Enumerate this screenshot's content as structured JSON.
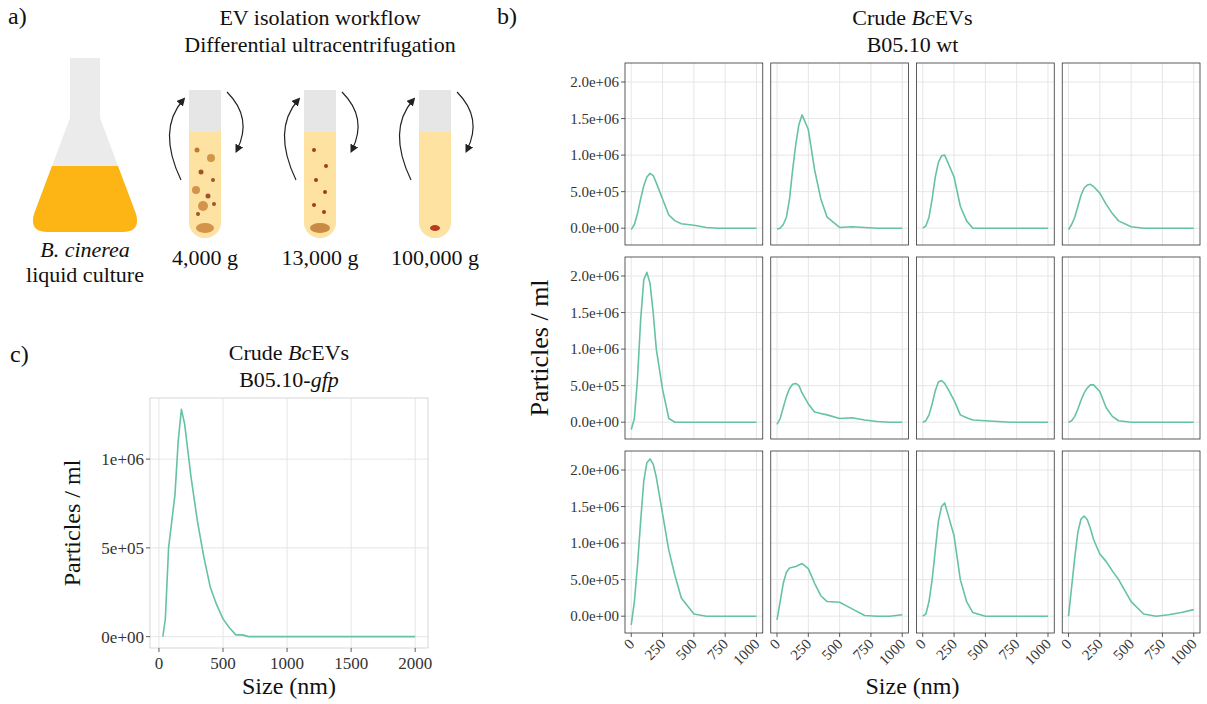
{
  "figure": {
    "panel_a": {
      "letter": "a)",
      "title_lines": [
        "EV isolation workflow",
        "Differential ultracentrifugation"
      ],
      "culture_label": [
        [
          {
            "text": "B. cinerea",
            "italic": true
          }
        ],
        [
          {
            "text": "liquid culture"
          }
        ]
      ],
      "steps": [
        "4,000 g",
        "13,000 g",
        "100,000 g"
      ]
    },
    "panel_b": {
      "letter": "b)",
      "title_lines": [
        [
          {
            "text": "Crude "
          },
          {
            "text": "Bc",
            "italic": true
          },
          {
            "text": "EVs"
          }
        ],
        [
          {
            "text": "B05.10 wt"
          }
        ]
      ],
      "x_label": "Size (nm)",
      "y_label": "Particles / ml"
    },
    "panel_c": {
      "letter": "c)",
      "title_lines": [
        [
          {
            "text": "Crude "
          },
          {
            "text": "Bc",
            "italic": true
          },
          {
            "text": "EVs"
          }
        ],
        [
          {
            "text": "B05.10-"
          },
          {
            "text": "gfp",
            "italic": true
          }
        ]
      ]
    }
  },
  "chart_data": [
    {
      "type": "line",
      "color": "#66c2a5",
      "grid": true,
      "tick_labels": "y",
      "x": [
        0,
        25,
        50,
        75,
        100,
        125,
        150,
        175,
        200,
        250,
        300,
        350,
        400,
        500,
        600,
        700,
        800,
        900,
        1000
      ],
      "values": [
        -20000,
        50000,
        200000,
        400000,
        580000,
        700000,
        750000,
        720000,
        620000,
        400000,
        180000,
        100000,
        60000,
        40000,
        10000,
        0,
        0,
        0,
        0
      ],
      "xlim": [
        -50,
        1050
      ],
      "ylim": [
        -230000,
        2260000
      ],
      "xticks": [
        0,
        250,
        500,
        750,
        1000
      ],
      "yticks": [
        {
          "value": 0,
          "label": "0.0e+00"
        },
        {
          "value": 500000,
          "label": "5.0e+05"
        },
        {
          "value": 1000000,
          "label": "1.0e+06"
        },
        {
          "value": 1500000,
          "label": "1.5e+06"
        },
        {
          "value": 2000000,
          "label": "2.0e+06"
        }
      ]
    },
    {
      "type": "line",
      "color": "#66c2a5",
      "grid": true,
      "tick_labels": false,
      "x": [
        0,
        25,
        50,
        75,
        100,
        125,
        150,
        175,
        200,
        250,
        300,
        350,
        400,
        500,
        600,
        700,
        800,
        900,
        1000
      ],
      "values": [
        -10000,
        0,
        50000,
        150000,
        400000,
        800000,
        1150000,
        1420000,
        1550000,
        1350000,
        800000,
        400000,
        150000,
        10000,
        20000,
        10000,
        0,
        0,
        0
      ],
      "xlim": [
        -50,
        1050
      ],
      "ylim": [
        -230000,
        2260000
      ],
      "xticks": [
        0,
        250,
        500,
        750,
        1000
      ],
      "yticks": [
        {
          "value": 0,
          "label": "0.0e+00"
        },
        {
          "value": 500000,
          "label": "5.0e+05"
        },
        {
          "value": 1000000,
          "label": "1.0e+06"
        },
        {
          "value": 1500000,
          "label": "1.5e+06"
        },
        {
          "value": 2000000,
          "label": "2.0e+06"
        }
      ]
    },
    {
      "type": "line",
      "color": "#66c2a5",
      "grid": true,
      "tick_labels": false,
      "x": [
        0,
        25,
        50,
        75,
        100,
        125,
        150,
        175,
        200,
        250,
        300,
        350,
        400,
        500,
        600,
        700,
        800,
        900,
        1000
      ],
      "values": [
        0,
        30000,
        150000,
        400000,
        700000,
        900000,
        990000,
        1000000,
        900000,
        700000,
        300000,
        100000,
        0,
        0,
        0,
        0,
        0,
        0,
        0
      ],
      "xlim": [
        -50,
        1050
      ],
      "ylim": [
        -230000,
        2260000
      ],
      "xticks": [
        0,
        250,
        500,
        750,
        1000
      ],
      "yticks": [
        {
          "value": 0,
          "label": "0.0e+00"
        },
        {
          "value": 500000,
          "label": "5.0e+05"
        },
        {
          "value": 1000000,
          "label": "1.0e+06"
        },
        {
          "value": 1500000,
          "label": "1.5e+06"
        },
        {
          "value": 2000000,
          "label": "2.0e+06"
        }
      ]
    },
    {
      "type": "line",
      "color": "#66c2a5",
      "grid": true,
      "tick_labels": false,
      "x": [
        0,
        25,
        50,
        75,
        100,
        125,
        150,
        175,
        200,
        250,
        300,
        350,
        400,
        500,
        600,
        700,
        800,
        900,
        1000
      ],
      "values": [
        -20000,
        50000,
        150000,
        300000,
        450000,
        550000,
        590000,
        600000,
        570000,
        480000,
        330000,
        200000,
        100000,
        20000,
        0,
        0,
        0,
        0,
        0
      ],
      "xlim": [
        -50,
        1050
      ],
      "ylim": [
        -230000,
        2260000
      ],
      "xticks": [
        0,
        250,
        500,
        750,
        1000
      ],
      "yticks": [
        {
          "value": 0,
          "label": "0.0e+00"
        },
        {
          "value": 500000,
          "label": "5.0e+05"
        },
        {
          "value": 1000000,
          "label": "1.0e+06"
        },
        {
          "value": 1500000,
          "label": "1.5e+06"
        },
        {
          "value": 2000000,
          "label": "2.0e+06"
        }
      ]
    },
    {
      "type": "line",
      "color": "#66c2a5",
      "grid": true,
      "tick_labels": "y",
      "x": [
        0,
        25,
        50,
        75,
        100,
        125,
        150,
        175,
        200,
        250,
        300,
        350,
        400,
        500,
        600,
        700,
        800,
        900,
        1000
      ],
      "values": [
        -100000,
        50000,
        600000,
        1400000,
        1950000,
        2050000,
        1900000,
        1500000,
        1000000,
        450000,
        50000,
        0,
        0,
        0,
        0,
        0,
        0,
        0,
        0
      ],
      "xlim": [
        -50,
        1050
      ],
      "ylim": [
        -230000,
        2260000
      ],
      "xticks": [
        0,
        250,
        500,
        750,
        1000
      ],
      "yticks": [
        {
          "value": 0,
          "label": "0.0e+00"
        },
        {
          "value": 500000,
          "label": "5.0e+05"
        },
        {
          "value": 1000000,
          "label": "1.0e+06"
        },
        {
          "value": 1500000,
          "label": "1.5e+06"
        },
        {
          "value": 2000000,
          "label": "2.0e+06"
        }
      ]
    },
    {
      "type": "line",
      "color": "#66c2a5",
      "grid": true,
      "tick_labels": false,
      "x": [
        0,
        25,
        50,
        75,
        100,
        125,
        150,
        175,
        200,
        250,
        300,
        350,
        400,
        500,
        600,
        700,
        800,
        900,
        1000
      ],
      "values": [
        -30000,
        50000,
        200000,
        350000,
        460000,
        520000,
        530000,
        500000,
        400000,
        250000,
        140000,
        120000,
        100000,
        50000,
        60000,
        30000,
        10000,
        0,
        0
      ],
      "xlim": [
        -50,
        1050
      ],
      "ylim": [
        -230000,
        2260000
      ],
      "xticks": [
        0,
        250,
        500,
        750,
        1000
      ],
      "yticks": [
        {
          "value": 0,
          "label": "0.0e+00"
        },
        {
          "value": 500000,
          "label": "5.0e+05"
        },
        {
          "value": 1000000,
          "label": "1.0e+06"
        },
        {
          "value": 1500000,
          "label": "1.5e+06"
        },
        {
          "value": 2000000,
          "label": "2.0e+06"
        }
      ]
    },
    {
      "type": "line",
      "color": "#66c2a5",
      "grid": true,
      "tick_labels": false,
      "x": [
        0,
        25,
        50,
        75,
        100,
        125,
        150,
        175,
        200,
        250,
        300,
        350,
        400,
        500,
        600,
        700,
        800,
        900,
        1000
      ],
      "values": [
        0,
        20000,
        100000,
        250000,
        430000,
        550000,
        570000,
        530000,
        460000,
        300000,
        100000,
        60000,
        30000,
        20000,
        10000,
        0,
        0,
        0,
        0
      ],
      "xlim": [
        -50,
        1050
      ],
      "ylim": [
        -230000,
        2260000
      ],
      "xticks": [
        0,
        250,
        500,
        750,
        1000
      ],
      "yticks": [
        {
          "value": 0,
          "label": "0.0e+00"
        },
        {
          "value": 500000,
          "label": "5.0e+05"
        },
        {
          "value": 1000000,
          "label": "1.0e+06"
        },
        {
          "value": 1500000,
          "label": "1.5e+06"
        },
        {
          "value": 2000000,
          "label": "2.0e+06"
        }
      ]
    },
    {
      "type": "line",
      "color": "#66c2a5",
      "grid": true,
      "tick_labels": false,
      "x": [
        0,
        25,
        50,
        75,
        100,
        125,
        150,
        175,
        200,
        250,
        300,
        350,
        400,
        500,
        600,
        700,
        800,
        900,
        1000
      ],
      "values": [
        0,
        20000,
        80000,
        180000,
        300000,
        400000,
        470000,
        510000,
        510000,
        420000,
        200000,
        80000,
        20000,
        0,
        0,
        0,
        0,
        0,
        0
      ],
      "xlim": [
        -50,
        1050
      ],
      "ylim": [
        -230000,
        2260000
      ],
      "xticks": [
        0,
        250,
        500,
        750,
        1000
      ],
      "yticks": [
        {
          "value": 0,
          "label": "0.0e+00"
        },
        {
          "value": 500000,
          "label": "5.0e+05"
        },
        {
          "value": 1000000,
          "label": "1.0e+06"
        },
        {
          "value": 1500000,
          "label": "1.5e+06"
        },
        {
          "value": 2000000,
          "label": "2.0e+06"
        }
      ]
    },
    {
      "type": "line",
      "color": "#66c2a5",
      "grid": true,
      "tick_labels": true,
      "x": [
        0,
        25,
        50,
        75,
        100,
        125,
        150,
        175,
        200,
        250,
        300,
        350,
        400,
        500,
        600,
        700,
        800,
        900,
        1000
      ],
      "values": [
        -120000,
        200000,
        700000,
        1300000,
        1850000,
        2100000,
        2150000,
        2080000,
        1900000,
        1400000,
        900000,
        550000,
        250000,
        30000,
        0,
        0,
        0,
        0,
        0
      ],
      "xlim": [
        -50,
        1050
      ],
      "ylim": [
        -230000,
        2260000
      ],
      "xticks": [
        0,
        250,
        500,
        750,
        1000
      ],
      "yticks": [
        {
          "value": 0,
          "label": "0.0e+00"
        },
        {
          "value": 500000,
          "label": "5.0e+05"
        },
        {
          "value": 1000000,
          "label": "1.0e+06"
        },
        {
          "value": 1500000,
          "label": "1.5e+06"
        },
        {
          "value": 2000000,
          "label": "2.0e+06"
        }
      ]
    },
    {
      "type": "line",
      "color": "#66c2a5",
      "grid": true,
      "tick_labels": "x",
      "x": [
        0,
        25,
        50,
        75,
        100,
        125,
        150,
        175,
        200,
        250,
        300,
        350,
        400,
        500,
        600,
        700,
        800,
        900,
        1000
      ],
      "values": [
        -50000,
        200000,
        450000,
        600000,
        660000,
        670000,
        680000,
        700000,
        720000,
        650000,
        450000,
        280000,
        200000,
        190000,
        100000,
        10000,
        0,
        0,
        20000
      ],
      "xlim": [
        -50,
        1050
      ],
      "ylim": [
        -230000,
        2260000
      ],
      "xticks": [
        0,
        250,
        500,
        750,
        1000
      ],
      "yticks": [
        {
          "value": 0,
          "label": "0.0e+00"
        },
        {
          "value": 500000,
          "label": "5.0e+05"
        },
        {
          "value": 1000000,
          "label": "1.0e+06"
        },
        {
          "value": 1500000,
          "label": "1.5e+06"
        },
        {
          "value": 2000000,
          "label": "2.0e+06"
        }
      ]
    },
    {
      "type": "line",
      "color": "#66c2a5",
      "grid": true,
      "tick_labels": "x",
      "x": [
        0,
        25,
        50,
        75,
        100,
        125,
        150,
        175,
        200,
        250,
        300,
        350,
        400,
        500,
        600,
        700,
        800,
        900,
        1000
      ],
      "values": [
        0,
        30000,
        200000,
        500000,
        900000,
        1300000,
        1500000,
        1550000,
        1400000,
        1100000,
        500000,
        200000,
        50000,
        0,
        0,
        0,
        0,
        0,
        0
      ],
      "xlim": [
        -50,
        1050
      ],
      "ylim": [
        -230000,
        2260000
      ],
      "xticks": [
        0,
        250,
        500,
        750,
        1000
      ],
      "yticks": [
        {
          "value": 0,
          "label": "0.0e+00"
        },
        {
          "value": 500000,
          "label": "5.0e+05"
        },
        {
          "value": 1000000,
          "label": "1.0e+06"
        },
        {
          "value": 1500000,
          "label": "1.5e+06"
        },
        {
          "value": 2000000,
          "label": "2.0e+06"
        }
      ]
    },
    {
      "type": "line",
      "color": "#66c2a5",
      "grid": true,
      "tick_labels": "x",
      "x": [
        0,
        25,
        50,
        75,
        100,
        125,
        150,
        175,
        200,
        250,
        300,
        350,
        400,
        500,
        600,
        700,
        800,
        900,
        1000
      ],
      "values": [
        0,
        400000,
        800000,
        1150000,
        1330000,
        1370000,
        1320000,
        1200000,
        1050000,
        850000,
        750000,
        620000,
        500000,
        200000,
        30000,
        0,
        20000,
        50000,
        90000
      ],
      "xlim": [
        -50,
        1050
      ],
      "ylim": [
        -230000,
        2260000
      ],
      "xticks": [
        0,
        250,
        500,
        750,
        1000
      ],
      "yticks": [
        {
          "value": 0,
          "label": "0.0e+00"
        },
        {
          "value": 500000,
          "label": "5.0e+05"
        },
        {
          "value": 1000000,
          "label": "1.0e+06"
        },
        {
          "value": 1500000,
          "label": "1.5e+06"
        },
        {
          "value": 2000000,
          "label": "2.0e+06"
        }
      ]
    },
    {
      "type": "line",
      "color": "#66c2a5",
      "grid": true,
      "tick_labels": true,
      "x_label": "Size (nm)",
      "y_label": "Particles / ml",
      "x": [
        30,
        50,
        75,
        100,
        125,
        150,
        175,
        200,
        250,
        300,
        350,
        400,
        450,
        500,
        550,
        600,
        650,
        700,
        800,
        1000,
        1500,
        2000
      ],
      "values": [
        0,
        100000,
        500000,
        650000,
        800000,
        1100000,
        1280000,
        1200000,
        900000,
        650000,
        450000,
        280000,
        180000,
        100000,
        50000,
        10000,
        10000,
        0,
        0,
        0,
        0,
        0
      ],
      "xlim": [
        -70,
        2100
      ],
      "ylim": [
        -64000,
        1344000
      ],
      "xticks": [
        0,
        500,
        1000,
        1500,
        2000
      ],
      "yticks": [
        {
          "value": 0,
          "label": "0e+00"
        },
        {
          "value": 500000,
          "label": "5e+05"
        },
        {
          "value": 1000000,
          "label": "1e+06"
        }
      ]
    }
  ]
}
